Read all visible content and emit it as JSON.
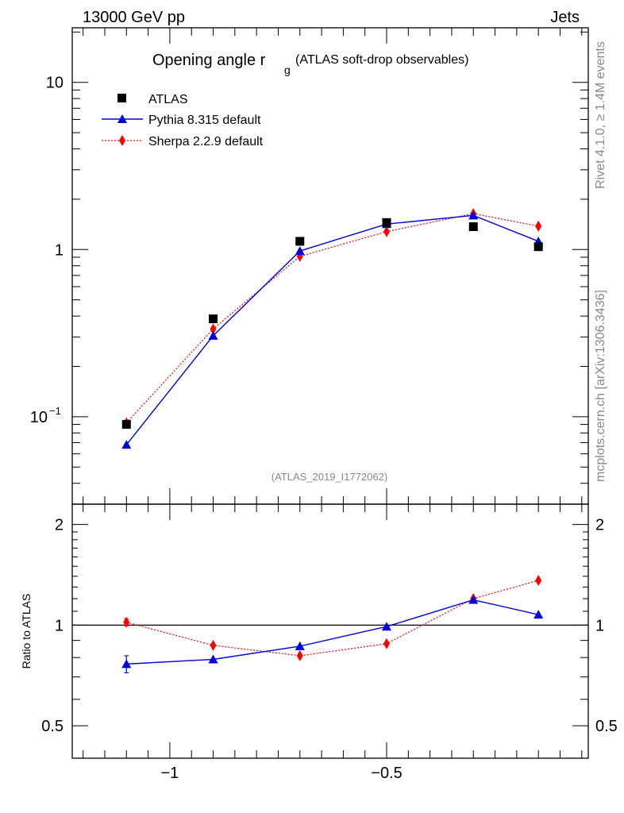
{
  "header": {
    "left_label": "13000 GeV pp",
    "right_label": "Jets"
  },
  "side_texts": {
    "rivet": "Rivet 4.1.0, ≥ 1.4M events",
    "mcplots": "mcplots.cern.ch [arXiv:1306.3436]"
  },
  "colors": {
    "atlas": "#000000",
    "pythia": "#0000e0",
    "sherpa": "#ff0000"
  },
  "chart_data": [
    {
      "type": "scatter",
      "title": "Opening angle r",
      "title_subscript": "g",
      "title_suffix": "(ATLAS soft-drop observables)",
      "analysis_label": "(ATLAS_2019_I1772062)",
      "yscale": "log",
      "ylim": [
        0.03,
        21.2
      ],
      "xlim": [
        -1.225,
        -0.035
      ],
      "y_ticks": [
        {
          "value": 10,
          "label": "10"
        },
        {
          "value": 1,
          "label": "1"
        },
        {
          "value": 0.1,
          "label": "10",
          "exp": "−1"
        }
      ],
      "legend_position": "top-left",
      "series": [
        {
          "name": "ATLAS",
          "marker": "square",
          "line": "none",
          "x": [
            -1.1,
            -0.9,
            -0.7,
            -0.5,
            -0.3,
            -0.15
          ],
          "y": [
            0.09,
            0.385,
            1.12,
            1.45,
            1.37,
            1.04
          ]
        },
        {
          "name": "Pythia 8.315 default",
          "marker": "triangle",
          "line": "solid",
          "x": [
            -1.1,
            -0.9,
            -0.7,
            -0.5,
            -0.3,
            -0.15
          ],
          "y": [
            0.068,
            0.305,
            0.98,
            1.42,
            1.6,
            1.12
          ]
        },
        {
          "name": "Sherpa 2.2.9 default",
          "marker": "diamond",
          "line": "dotted",
          "x": [
            -1.1,
            -0.9,
            -0.7,
            -0.5,
            -0.3,
            -0.15
          ],
          "y": [
            0.092,
            0.335,
            0.91,
            1.28,
            1.64,
            1.38
          ]
        }
      ]
    },
    {
      "type": "scatter",
      "ylabel": "Ratio to ATLAS",
      "yscale": "log",
      "ylim": [
        0.4,
        2.3
      ],
      "xlim": [
        -1.225,
        -0.035
      ],
      "reference": 1,
      "y_ticks": [
        {
          "value": 2,
          "label": "2"
        },
        {
          "value": 1,
          "label": "1"
        },
        {
          "value": 0.5,
          "label": "0.5"
        }
      ],
      "x_ticks": [
        {
          "value": -1,
          "label": "−1"
        },
        {
          "value": -0.5,
          "label": "−0.5"
        }
      ],
      "series": [
        {
          "name": "Pythia 8.315 default",
          "marker": "triangle",
          "line": "solid",
          "x": [
            -1.1,
            -0.9,
            -0.7,
            -0.5,
            -0.3,
            -0.15
          ],
          "y": [
            0.765,
            0.79,
            0.865,
            0.99,
            1.19,
            1.075
          ],
          "err": [
            0.045,
            0,
            0,
            0,
            0,
            0
          ]
        },
        {
          "name": "Sherpa 2.2.9 default",
          "marker": "diamond",
          "line": "dotted",
          "x": [
            -1.1,
            -0.9,
            -0.7,
            -0.5,
            -0.3,
            -0.15
          ],
          "y": [
            1.02,
            0.87,
            0.81,
            0.88,
            1.2,
            1.36
          ],
          "err": [
            0.025,
            0,
            0,
            0,
            0,
            0
          ]
        }
      ]
    }
  ]
}
